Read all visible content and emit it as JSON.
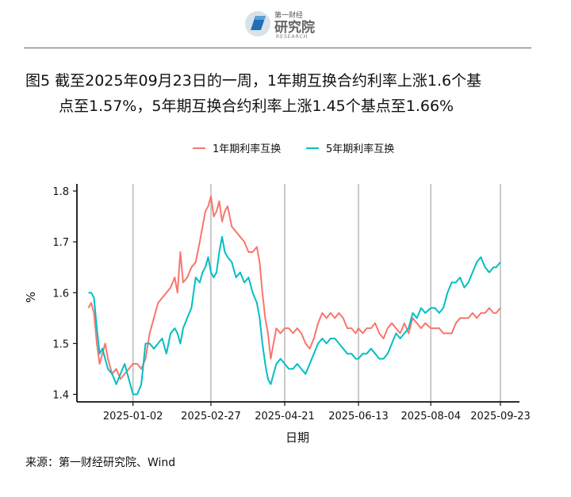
{
  "logo": {
    "top_text": "第一财经",
    "name": "研究院",
    "sub": "RESEARCH"
  },
  "title": {
    "line1": "图5  截至2025年09月23日的一周，1年期互换合约利率上涨1.6个基",
    "line2": "点至1.57%，5年期互换合约利率上涨1.45个基点至1.66%"
  },
  "source": "来源：第一财经研究院、Wind",
  "chart_data": {
    "type": "line",
    "xlabel": "日期",
    "ylabel": "%",
    "ylim": [
      1.38,
      1.81
    ],
    "yticks": [
      1.4,
      1.5,
      1.6,
      1.7,
      1.8
    ],
    "ytick_labels": [
      "1.4",
      "1.5",
      "1.6",
      "1.7",
      "1.8"
    ],
    "xticks": [
      "2025-01-02",
      "2025-02-27",
      "2025-04-21",
      "2025-06-13",
      "2025-08-04",
      "2025-09-23"
    ],
    "xlim": [
      "2024-11-25",
      "2025-09-23"
    ],
    "grid": "vertical at x ticks",
    "legend_position": "top",
    "series": [
      {
        "name": "1年期利率互换",
        "color": "#F8766D",
        "points": [
          [
            "2024-12-01",
            1.57
          ],
          [
            "2024-12-03",
            1.58
          ],
          [
            "2024-12-05",
            1.56
          ],
          [
            "2024-12-07",
            1.5
          ],
          [
            "2024-12-09",
            1.46
          ],
          [
            "2024-12-11",
            1.48
          ],
          [
            "2024-12-13",
            1.5
          ],
          [
            "2024-12-15",
            1.47
          ],
          [
            "2024-12-18",
            1.44
          ],
          [
            "2024-12-21",
            1.45
          ],
          [
            "2024-12-24",
            1.43
          ],
          [
            "2024-12-27",
            1.44
          ],
          [
            "2024-12-30",
            1.45
          ],
          [
            "2025-01-02",
            1.46
          ],
          [
            "2025-01-05",
            1.46
          ],
          [
            "2025-01-08",
            1.45
          ],
          [
            "2025-01-11",
            1.47
          ],
          [
            "2025-01-14",
            1.52
          ],
          [
            "2025-01-17",
            1.55
          ],
          [
            "2025-01-20",
            1.58
          ],
          [
            "2025-01-23",
            1.59
          ],
          [
            "2025-01-26",
            1.6
          ],
          [
            "2025-01-29",
            1.61
          ],
          [
            "2025-02-01",
            1.63
          ],
          [
            "2025-02-03",
            1.6
          ],
          [
            "2025-02-05",
            1.68
          ],
          [
            "2025-02-07",
            1.62
          ],
          [
            "2025-02-10",
            1.63
          ],
          [
            "2025-02-13",
            1.65
          ],
          [
            "2025-02-16",
            1.66
          ],
          [
            "2025-02-19",
            1.7
          ],
          [
            "2025-02-21",
            1.73
          ],
          [
            "2025-02-23",
            1.76
          ],
          [
            "2025-02-25",
            1.77
          ],
          [
            "2025-02-27",
            1.79
          ],
          [
            "2025-03-01",
            1.75
          ],
          [
            "2025-03-03",
            1.76
          ],
          [
            "2025-03-05",
            1.78
          ],
          [
            "2025-03-07",
            1.74
          ],
          [
            "2025-03-09",
            1.76
          ],
          [
            "2025-03-11",
            1.77
          ],
          [
            "2025-03-14",
            1.73
          ],
          [
            "2025-03-17",
            1.72
          ],
          [
            "2025-03-20",
            1.71
          ],
          [
            "2025-03-23",
            1.7
          ],
          [
            "2025-03-26",
            1.68
          ],
          [
            "2025-03-29",
            1.68
          ],
          [
            "2025-04-01",
            1.69
          ],
          [
            "2025-04-03",
            1.66
          ],
          [
            "2025-04-05",
            1.6
          ],
          [
            "2025-04-07",
            1.55
          ],
          [
            "2025-04-09",
            1.52
          ],
          [
            "2025-04-11",
            1.47
          ],
          [
            "2025-04-13",
            1.5
          ],
          [
            "2025-04-15",
            1.53
          ],
          [
            "2025-04-18",
            1.52
          ],
          [
            "2025-04-21",
            1.53
          ],
          [
            "2025-04-24",
            1.53
          ],
          [
            "2025-04-27",
            1.52
          ],
          [
            "2025-04-30",
            1.53
          ],
          [
            "2025-05-03",
            1.52
          ],
          [
            "2025-05-06",
            1.5
          ],
          [
            "2025-05-09",
            1.49
          ],
          [
            "2025-05-12",
            1.51
          ],
          [
            "2025-05-15",
            1.54
          ],
          [
            "2025-05-18",
            1.56
          ],
          [
            "2025-05-21",
            1.55
          ],
          [
            "2025-05-24",
            1.56
          ],
          [
            "2025-05-27",
            1.55
          ],
          [
            "2025-05-30",
            1.56
          ],
          [
            "2025-06-02",
            1.55
          ],
          [
            "2025-06-05",
            1.53
          ],
          [
            "2025-06-08",
            1.53
          ],
          [
            "2025-06-11",
            1.52
          ],
          [
            "2025-06-13",
            1.53
          ],
          [
            "2025-06-16",
            1.52
          ],
          [
            "2025-06-19",
            1.53
          ],
          [
            "2025-06-22",
            1.53
          ],
          [
            "2025-06-25",
            1.54
          ],
          [
            "2025-06-28",
            1.52
          ],
          [
            "2025-07-01",
            1.51
          ],
          [
            "2025-07-04",
            1.53
          ],
          [
            "2025-07-07",
            1.54
          ],
          [
            "2025-07-10",
            1.53
          ],
          [
            "2025-07-13",
            1.52
          ],
          [
            "2025-07-16",
            1.54
          ],
          [
            "2025-07-19",
            1.52
          ],
          [
            "2025-07-22",
            1.55
          ],
          [
            "2025-07-25",
            1.54
          ],
          [
            "2025-07-28",
            1.53
          ],
          [
            "2025-07-31",
            1.54
          ],
          [
            "2025-08-04",
            1.53
          ],
          [
            "2025-08-07",
            1.53
          ],
          [
            "2025-08-10",
            1.53
          ],
          [
            "2025-08-13",
            1.52
          ],
          [
            "2025-08-16",
            1.52
          ],
          [
            "2025-08-19",
            1.52
          ],
          [
            "2025-08-22",
            1.54
          ],
          [
            "2025-08-25",
            1.55
          ],
          [
            "2025-08-28",
            1.55
          ],
          [
            "2025-08-31",
            1.55
          ],
          [
            "2025-09-03",
            1.56
          ],
          [
            "2025-09-06",
            1.55
          ],
          [
            "2025-09-09",
            1.56
          ],
          [
            "2025-09-12",
            1.56
          ],
          [
            "2025-09-15",
            1.57
          ],
          [
            "2025-09-18",
            1.56
          ],
          [
            "2025-09-20",
            1.56
          ],
          [
            "2025-09-23",
            1.57
          ]
        ]
      },
      {
        "name": "5年期利率互换",
        "color": "#00BFC4",
        "points": [
          [
            "2024-12-01",
            1.6
          ],
          [
            "2024-12-03",
            1.6
          ],
          [
            "2024-12-05",
            1.59
          ],
          [
            "2024-12-07",
            1.53
          ],
          [
            "2024-12-09",
            1.48
          ],
          [
            "2024-12-11",
            1.49
          ],
          [
            "2024-12-13",
            1.47
          ],
          [
            "2024-12-15",
            1.45
          ],
          [
            "2024-12-18",
            1.44
          ],
          [
            "2024-12-21",
            1.42
          ],
          [
            "2024-12-24",
            1.44
          ],
          [
            "2024-12-27",
            1.46
          ],
          [
            "2024-12-30",
            1.43
          ],
          [
            "2025-01-02",
            1.4
          ],
          [
            "2025-01-05",
            1.4
          ],
          [
            "2025-01-08",
            1.42
          ],
          [
            "2025-01-11",
            1.5
          ],
          [
            "2025-01-14",
            1.5
          ],
          [
            "2025-01-17",
            1.49
          ],
          [
            "2025-01-20",
            1.5
          ],
          [
            "2025-01-23",
            1.51
          ],
          [
            "2025-01-26",
            1.48
          ],
          [
            "2025-01-29",
            1.52
          ],
          [
            "2025-02-01",
            1.53
          ],
          [
            "2025-02-03",
            1.52
          ],
          [
            "2025-02-05",
            1.5
          ],
          [
            "2025-02-07",
            1.53
          ],
          [
            "2025-02-10",
            1.55
          ],
          [
            "2025-02-13",
            1.57
          ],
          [
            "2025-02-16",
            1.63
          ],
          [
            "2025-02-19",
            1.62
          ],
          [
            "2025-02-21",
            1.64
          ],
          [
            "2025-02-23",
            1.65
          ],
          [
            "2025-02-25",
            1.67
          ],
          [
            "2025-02-27",
            1.64
          ],
          [
            "2025-03-01",
            1.63
          ],
          [
            "2025-03-03",
            1.64
          ],
          [
            "2025-03-05",
            1.68
          ],
          [
            "2025-03-07",
            1.71
          ],
          [
            "2025-03-09",
            1.68
          ],
          [
            "2025-03-11",
            1.67
          ],
          [
            "2025-03-14",
            1.66
          ],
          [
            "2025-03-17",
            1.63
          ],
          [
            "2025-03-20",
            1.64
          ],
          [
            "2025-03-23",
            1.62
          ],
          [
            "2025-03-26",
            1.63
          ],
          [
            "2025-03-29",
            1.6
          ],
          [
            "2025-04-01",
            1.58
          ],
          [
            "2025-04-03",
            1.55
          ],
          [
            "2025-04-05",
            1.5
          ],
          [
            "2025-04-07",
            1.46
          ],
          [
            "2025-04-09",
            1.43
          ],
          [
            "2025-04-11",
            1.42
          ],
          [
            "2025-04-13",
            1.44
          ],
          [
            "2025-04-15",
            1.46
          ],
          [
            "2025-04-18",
            1.47
          ],
          [
            "2025-04-21",
            1.46
          ],
          [
            "2025-04-24",
            1.45
          ],
          [
            "2025-04-27",
            1.45
          ],
          [
            "2025-04-30",
            1.46
          ],
          [
            "2025-05-03",
            1.45
          ],
          [
            "2025-05-06",
            1.44
          ],
          [
            "2025-05-09",
            1.46
          ],
          [
            "2025-05-12",
            1.48
          ],
          [
            "2025-05-15",
            1.5
          ],
          [
            "2025-05-18",
            1.51
          ],
          [
            "2025-05-21",
            1.5
          ],
          [
            "2025-05-24",
            1.51
          ],
          [
            "2025-05-27",
            1.51
          ],
          [
            "2025-05-30",
            1.5
          ],
          [
            "2025-06-02",
            1.49
          ],
          [
            "2025-06-05",
            1.48
          ],
          [
            "2025-06-08",
            1.48
          ],
          [
            "2025-06-11",
            1.47
          ],
          [
            "2025-06-13",
            1.47
          ],
          [
            "2025-06-16",
            1.48
          ],
          [
            "2025-06-19",
            1.48
          ],
          [
            "2025-06-22",
            1.49
          ],
          [
            "2025-06-25",
            1.48
          ],
          [
            "2025-06-28",
            1.47
          ],
          [
            "2025-07-01",
            1.47
          ],
          [
            "2025-07-04",
            1.48
          ],
          [
            "2025-07-07",
            1.5
          ],
          [
            "2025-07-10",
            1.52
          ],
          [
            "2025-07-13",
            1.51
          ],
          [
            "2025-07-16",
            1.52
          ],
          [
            "2025-07-19",
            1.53
          ],
          [
            "2025-07-22",
            1.56
          ],
          [
            "2025-07-25",
            1.55
          ],
          [
            "2025-07-28",
            1.57
          ],
          [
            "2025-07-31",
            1.56
          ],
          [
            "2025-08-04",
            1.57
          ],
          [
            "2025-08-07",
            1.57
          ],
          [
            "2025-08-10",
            1.56
          ],
          [
            "2025-08-13",
            1.57
          ],
          [
            "2025-08-16",
            1.6
          ],
          [
            "2025-08-19",
            1.62
          ],
          [
            "2025-08-22",
            1.62
          ],
          [
            "2025-08-25",
            1.63
          ],
          [
            "2025-08-28",
            1.61
          ],
          [
            "2025-08-31",
            1.62
          ],
          [
            "2025-09-03",
            1.64
          ],
          [
            "2025-09-06",
            1.66
          ],
          [
            "2025-09-09",
            1.67
          ],
          [
            "2025-09-12",
            1.65
          ],
          [
            "2025-09-15",
            1.64
          ],
          [
            "2025-09-18",
            1.65
          ],
          [
            "2025-09-20",
            1.65
          ],
          [
            "2025-09-23",
            1.66
          ]
        ]
      }
    ]
  }
}
